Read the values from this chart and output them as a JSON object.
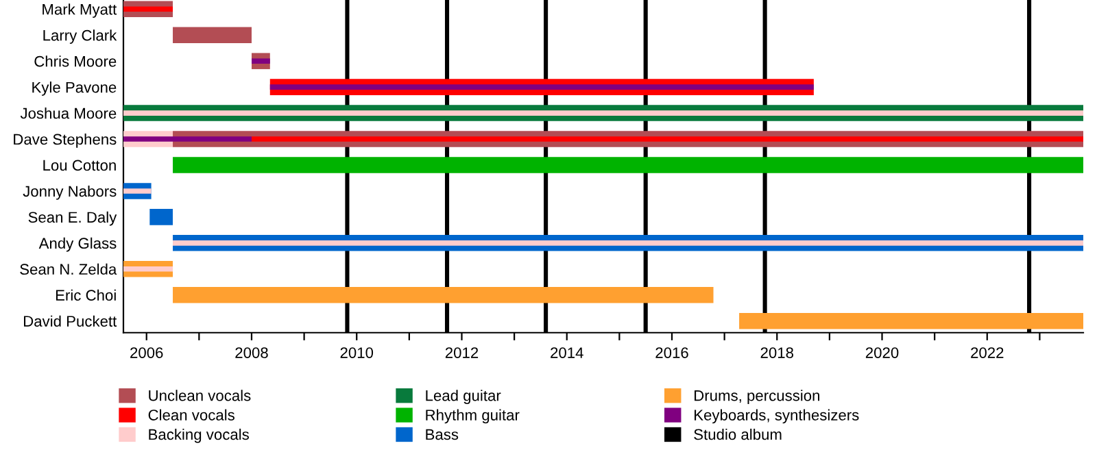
{
  "chart_data": {
    "type": "bar",
    "orientation": "horizontal",
    "categories": [
      "Mark Myatt",
      "Larry Clark",
      "Chris Moore",
      "Kyle Pavone",
      "Joshua Moore",
      "Dave Stephens",
      "Lou Cotton",
      "Jonny Nabors",
      "Sean E. Daly",
      "Andy Glass",
      "Sean N. Zelda",
      "Eric Choi",
      "David Puckett"
    ],
    "series": [
      {
        "name": "Unclean vocals",
        "color": "#b34d54",
        "base": [
          2005.56,
          2006.5,
          2008.0,
          null,
          null,
          2006.5,
          null,
          null,
          null,
          null,
          null,
          null,
          null
        ],
        "values": [
          0.94,
          1.5,
          0.35,
          null,
          null,
          17.33,
          null,
          null,
          null,
          null,
          null,
          null,
          null
        ]
      },
      {
        "name": "Clean vocals",
        "color": "#ff0000",
        "base": [
          null,
          null,
          null,
          2008.35,
          null,
          null,
          null,
          null,
          null,
          null,
          null,
          null,
          null
        ],
        "values": [
          null,
          null,
          null,
          10.35,
          null,
          null,
          null,
          null,
          null,
          null,
          null,
          null,
          null
        ]
      },
      {
        "name": "Backing vocals",
        "color": "#ffcccc",
        "base": [
          null,
          null,
          null,
          null,
          null,
          2005.56,
          null,
          null,
          null,
          null,
          null,
          null,
          null
        ],
        "values": [
          null,
          null,
          null,
          null,
          null,
          0.94,
          null,
          null,
          null,
          null,
          null,
          null,
          null
        ]
      },
      {
        "name": "Lead guitar",
        "color": "#087a3c",
        "base": [
          null,
          null,
          null,
          null,
          2005.56,
          null,
          null,
          null,
          null,
          null,
          null,
          null,
          null
        ],
        "values": [
          null,
          null,
          null,
          null,
          18.27,
          null,
          null,
          null,
          null,
          null,
          null,
          null,
          null
        ]
      },
      {
        "name": "Rhythm guitar",
        "color": "#00b300",
        "base": [
          null,
          null,
          null,
          null,
          null,
          null,
          2006.5,
          null,
          null,
          null,
          null,
          null,
          null
        ],
        "values": [
          null,
          null,
          null,
          null,
          null,
          null,
          17.33,
          null,
          null,
          null,
          null,
          null,
          null
        ]
      },
      {
        "name": "Bass",
        "color": "#0066cc",
        "base": [
          null,
          null,
          null,
          null,
          null,
          null,
          null,
          2005.56,
          2006.06,
          2006.5,
          null,
          null,
          null
        ],
        "values": [
          null,
          null,
          null,
          null,
          null,
          null,
          null,
          0.53,
          0.44,
          17.33,
          null,
          null,
          null
        ]
      },
      {
        "name": "Drums, percussion",
        "color": "#ffa030",
        "base": [
          null,
          null,
          null,
          null,
          null,
          null,
          null,
          null,
          null,
          null,
          2005.56,
          2006.5,
          2017.28
        ],
        "values": [
          null,
          null,
          null,
          null,
          null,
          null,
          null,
          null,
          null,
          null,
          0.94,
          10.29,
          6.55
        ]
      },
      {
        "name": "Keyboards, synthesizers",
        "color": "#800080",
        "base": [
          null,
          null,
          null,
          null,
          null,
          null,
          null,
          null,
          null,
          null,
          null,
          null,
          null
        ],
        "values": [
          null,
          null,
          null,
          null,
          null,
          null,
          null,
          null,
          null,
          null,
          null,
          null,
          null
        ]
      },
      {
        "color": "#ff0000",
        "base": [
          2005.56,
          null,
          null,
          null,
          null,
          2008.0,
          null,
          null,
          null,
          null,
          null,
          null,
          null
        ],
        "values": [
          0.94,
          null,
          null,
          null,
          null,
          15.83,
          null,
          null,
          null,
          null,
          null,
          null,
          null
        ]
      },
      {
        "color": "#800080",
        "base": [
          null,
          null,
          2008.0,
          2008.35,
          null,
          2005.56,
          null,
          null,
          null,
          null,
          null,
          null,
          null
        ],
        "values": [
          null,
          null,
          0.35,
          10.35,
          null,
          2.44,
          null,
          null,
          null,
          null,
          null,
          null,
          null
        ]
      },
      {
        "color": "#ffcccc",
        "base": [
          null,
          null,
          null,
          null,
          2005.56,
          null,
          null,
          2005.56,
          null,
          2006.5,
          2005.56,
          null,
          null
        ],
        "values": [
          null,
          null,
          null,
          null,
          18.27,
          null,
          null,
          0.53,
          null,
          17.33,
          0.94,
          null,
          null
        ]
      }
    ],
    "xlim": [
      2005.56,
      2023.83
    ],
    "xticks": [
      2006,
      {
        "value": 2007,
        "label": null
      },
      2008,
      {
        "value": 2009,
        "label": null
      },
      2010,
      {
        "value": 2011,
        "label": null
      },
      2012,
      {
        "value": 2013,
        "label": null
      },
      2014,
      {
        "value": 2015,
        "label": null
      },
      2016,
      {
        "value": 2017,
        "label": null
      },
      2018,
      {
        "value": 2019,
        "label": null
      },
      2020,
      {
        "value": 2021,
        "label": null
      },
      2022,
      {
        "value": 2023,
        "label": null
      }
    ],
    "ref_lines": [
      {
        "axis": "x",
        "value": 2009.82,
        "label": "Studio album",
        "color": "#000000"
      },
      {
        "axis": "x",
        "value": 2011.72,
        "color": "#000000"
      },
      {
        "axis": "x",
        "value": 2013.6,
        "color": "#000000"
      },
      {
        "axis": "x",
        "value": 2015.5,
        "color": "#000000"
      },
      {
        "axis": "x",
        "value": 2017.77,
        "color": "#000000"
      },
      {
        "axis": "x",
        "value": 2022.8,
        "color": "#000000"
      }
    ],
    "grid": false,
    "legend": "bottom"
  }
}
